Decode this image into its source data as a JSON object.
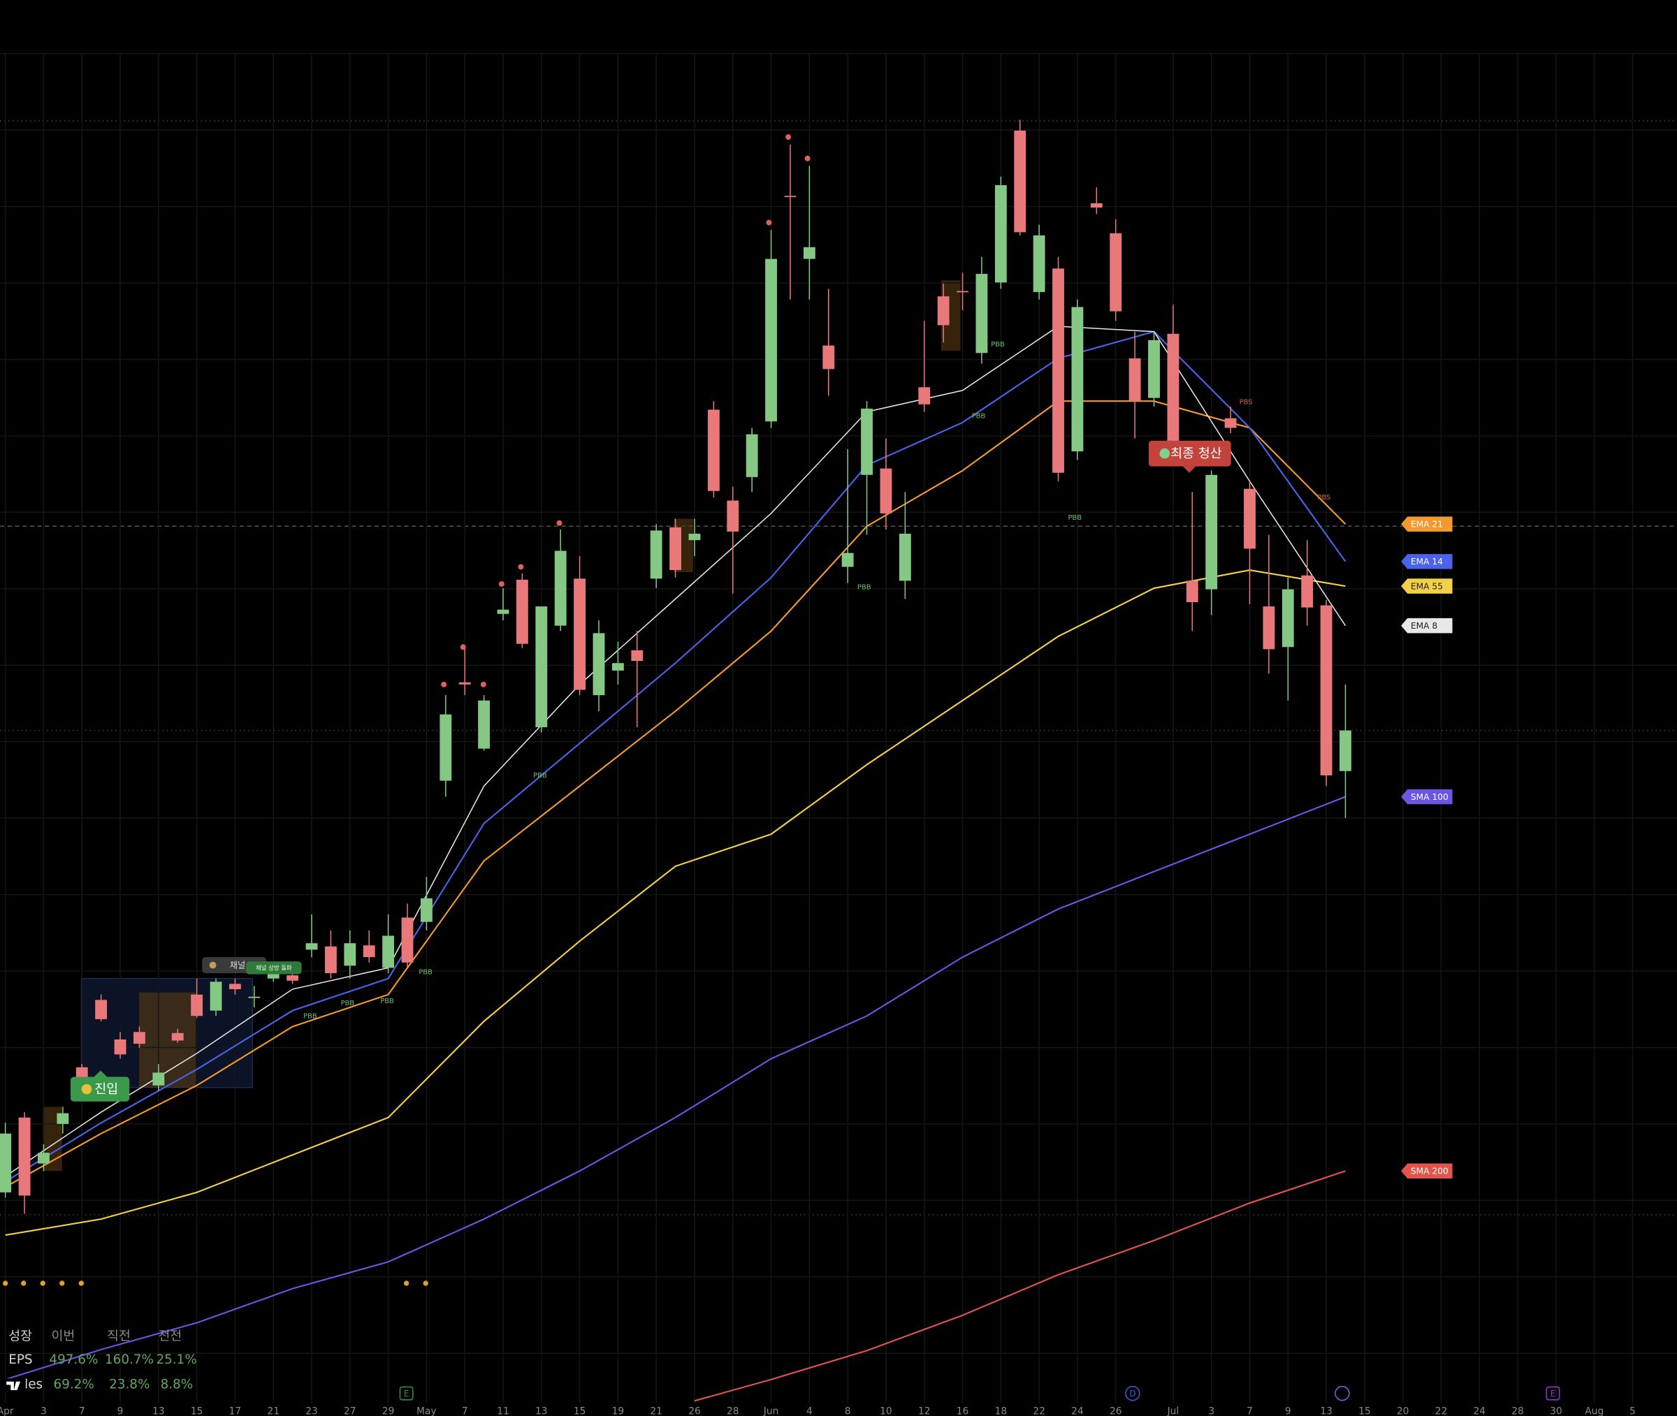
{
  "chart_data": {
    "type": "candlestick",
    "xlim": [
      -0.28,
      87.32
    ],
    "ylim": [
      0,
      132.4
    ],
    "up_color": "#84c883",
    "down_color": "#e8787a",
    "xticks": [
      {
        "value": 0,
        "label": "Apr"
      },
      {
        "value": 2,
        "label": "3"
      },
      {
        "value": 4,
        "label": "7"
      },
      {
        "value": 6,
        "label": "9"
      },
      {
        "value": 8,
        "label": "13"
      },
      {
        "value": 10,
        "label": "15"
      },
      {
        "value": 12,
        "label": "17"
      },
      {
        "value": 14,
        "label": "21"
      },
      {
        "value": 16,
        "label": "23"
      },
      {
        "value": 18,
        "label": "27"
      },
      {
        "value": 20,
        "label": "29"
      },
      {
        "value": 22,
        "label": "May"
      },
      {
        "value": 24,
        "label": "7"
      },
      {
        "value": 26,
        "label": "11"
      },
      {
        "value": 28,
        "label": "13"
      },
      {
        "value": 30,
        "label": "15"
      },
      {
        "value": 32,
        "label": "19"
      },
      {
        "value": 34,
        "label": "21"
      },
      {
        "value": 36,
        "label": "26"
      },
      {
        "value": 38,
        "label": "28"
      },
      {
        "value": 40,
        "label": "Jun"
      },
      {
        "value": 42,
        "label": "4"
      },
      {
        "value": 44,
        "label": "8"
      },
      {
        "value": 46,
        "label": "10"
      },
      {
        "value": 48,
        "label": "12"
      },
      {
        "value": 50,
        "label": "16"
      },
      {
        "value": 52,
        "label": "18"
      },
      {
        "value": 54,
        "label": "22"
      },
      {
        "value": 56,
        "label": "24"
      },
      {
        "value": 58,
        "label": "26"
      },
      {
        "value": 61,
        "label": "Jul"
      },
      {
        "value": 63,
        "label": "3"
      },
      {
        "value": 65,
        "label": "7"
      },
      {
        "value": 67,
        "label": "9"
      },
      {
        "value": 69,
        "label": "13"
      },
      {
        "value": 71,
        "label": "15"
      },
      {
        "value": 73,
        "label": "20"
      },
      {
        "value": 75,
        "label": "22"
      },
      {
        "value": 77,
        "label": "24"
      },
      {
        "value": 79,
        "label": "28"
      },
      {
        "value": 81,
        "label": "30"
      },
      {
        "value": 83,
        "label": "Aug"
      },
      {
        "value": 85,
        "label": "5"
      }
    ],
    "open": [
      20.9,
      27.9,
      23.6,
      27.3,
      32.6,
      38.9,
      35.2,
      35.9,
      30.9,
      35.8,
      39.4,
      37.9,
      40.4,
      39.2,
      40.9,
      41.2,
      43.6,
      43.9,
      42.1,
      44.0,
      41.9,
      46.6,
      46.2,
      59.4,
      68.6,
      62.4,
      75.0,
      78.2,
      64.4,
      73.9,
      78.3,
      67.4,
      69.7,
      71.6,
      78.3,
      83.1,
      81.9,
      94.1,
      85.6,
      87.8,
      93.0,
      114.1,
      108.2,
      100.1,
      79.4,
      88.0,
      88.6,
      78.1,
      96.2,
      104.7,
      105.2,
      99.4,
      106.0,
      120.2,
      105.1,
      107.3,
      90.2,
      113.4,
      110.6,
      98.9,
      95.2,
      101.2,
      78.1,
      77.3,
      93.3,
      86.7,
      75.7,
      71.9,
      78.6,
      75.8,
      60.3
    ],
    "high": [
      27.4,
      28.4,
      25.4,
      28.9,
      32.9,
      39.4,
      35.9,
      36.4,
      32.9,
      36.2,
      40.9,
      40.9,
      40.9,
      40.2,
      41.9,
      41.6,
      46.9,
      45.4,
      45.4,
      45.4,
      46.9,
      47.9,
      50.4,
      67.4,
      71.9,
      67.4,
      77.4,
      78.8,
      75.4,
      82.9,
      80.4,
      74.4,
      72.4,
      73.4,
      83.4,
      83.9,
      83.9,
      94.9,
      86.9,
      92.4,
      110.9,
      118.9,
      116.9,
      105.4,
      90.4,
      94.9,
      91.4,
      86.4,
      102.4,
      105.9,
      106.9,
      108.4,
      115.9,
      121.2,
      111.4,
      108.4,
      104.4,
      114.9,
      111.9,
      101.4,
      101.4,
      103.9,
      86.4,
      88.4,
      94.4,
      87.4,
      82.4,
      78.4,
      81.9,
      76.3,
      68.4
    ],
    "low": [
      20.4,
      18.9,
      22.9,
      26.4,
      31.4,
      36.9,
      33.4,
      34.4,
      30.4,
      34.9,
      37.2,
      37.4,
      39.4,
      38.2,
      40.6,
      40.4,
      42.9,
      40.9,
      40.9,
      42.4,
      41.4,
      41.9,
      45.4,
      57.9,
      67.4,
      62.2,
      74.4,
      71.8,
      63.9,
      73.4,
      67.4,
      65.9,
      68.4,
      64.4,
      77.4,
      78.4,
      80.4,
      85.9,
      76.9,
      86.4,
      92.4,
      104.4,
      104.4,
      95.4,
      77.9,
      82.4,
      82.9,
      76.4,
      93.9,
      100.4,
      103.4,
      98.4,
      105.4,
      110.4,
      104.4,
      87.4,
      89.4,
      112.4,
      102.4,
      91.4,
      94.4,
      90.4,
      73.4,
      74.9,
      91.9,
      75.9,
      69.4,
      66.9,
      73.9,
      58.9,
      55.9
    ],
    "close": [
      26.4,
      20.6,
      24.6,
      28.3,
      31.7,
      37.1,
      33.8,
      34.8,
      32.1,
      35.1,
      37.4,
      40.6,
      39.9,
      39.2,
      41.4,
      40.7,
      44.2,
      41.4,
      44.2,
      42.9,
      44.9,
      42.4,
      48.4,
      65.6,
      68.4,
      66.9,
      75.4,
      72.2,
      75.7,
      80.9,
      67.9,
      73.2,
      70.4,
      70.6,
      82.8,
      79.1,
      82.5,
      86.5,
      82.7,
      91.8,
      108.2,
      114.0,
      109.3,
      97.9,
      80.7,
      94.2,
      84.4,
      82.5,
      94.6,
      102.0,
      105.1,
      106.8,
      115.1,
      110.7,
      110.4,
      88.2,
      103.7,
      113.0,
      103.3,
      94.9,
      100.6,
      91.0,
      76.1,
      88.0,
      92.4,
      81.1,
      71.7,
      77.3,
      75.6,
      59.9,
      64.1
    ],
    "lines": [
      {
        "name": "EMA 21",
        "color": "#f29a2e",
        "x": [
          0,
          5,
          10,
          15,
          20,
          25,
          30,
          35,
          40,
          45,
          50,
          55,
          60,
          65,
          70
        ],
        "values": [
          21.4,
          26.4,
          30.9,
          36.4,
          39.4,
          51.9,
          58.9,
          65.9,
          73.4,
          83.2,
          88.4,
          94.9,
          94.9,
          92.4,
          83.4
        ]
      },
      {
        "name": "EMA 14",
        "color": "#4a63e8",
        "x": [
          0,
          5,
          10,
          15,
          20,
          25,
          30,
          35,
          40,
          45,
          50,
          55,
          60,
          65,
          70
        ],
        "values": [
          21.9,
          27.4,
          32.4,
          37.9,
          40.9,
          55.4,
          62.9,
          70.4,
          78.4,
          88.9,
          92.9,
          98.9,
          101.4,
          92.4,
          79.9
        ]
      },
      {
        "name": "EMA 55",
        "color": "#f2d04a",
        "x": [
          0,
          5,
          10,
          15,
          20,
          25,
          30,
          35,
          40,
          45,
          50,
          55,
          60,
          65,
          70
        ],
        "values": [
          16.9,
          18.4,
          20.9,
          24.4,
          27.9,
          36.9,
          44.4,
          51.4,
          54.4,
          60.9,
          66.9,
          72.9,
          77.4,
          79.1,
          77.6
        ]
      },
      {
        "name": "EMA 8",
        "color": "#e8e8e8",
        "x": [
          0,
          5,
          10,
          15,
          20,
          25,
          30,
          35,
          40,
          45,
          50,
          55,
          60,
          65,
          70
        ],
        "values": [
          22.4,
          28.4,
          33.9,
          39.9,
          41.9,
          58.9,
          68.4,
          76.4,
          84.4,
          93.9,
          95.9,
          101.9,
          101.4,
          87.4,
          73.9
        ]
      },
      {
        "name": "SMA 100",
        "color": "#6c55e0",
        "x": [
          0,
          5,
          10,
          15,
          20,
          25,
          30,
          35,
          40,
          45,
          50,
          55,
          60,
          65,
          70
        ],
        "values": [
          3.4,
          6.2,
          8.7,
          11.9,
          14.4,
          18.4,
          22.9,
          27.9,
          33.4,
          37.4,
          42.9,
          47.4,
          50.9,
          54.4,
          57.9
        ]
      },
      {
        "name": "SMA 200",
        "color": "#e0564c",
        "x": [
          36,
          40,
          45,
          50,
          55,
          60,
          65,
          70
        ],
        "values": [
          1.4,
          3.4,
          6.1,
          9.4,
          13.2,
          16.4,
          19.9,
          22.9
        ]
      }
    ],
    "annotations": [
      "진입",
      "최종 청산",
      "채널 (",
      "채널 상방 돌파",
      "PBB",
      "PBB",
      "PBB",
      "PBB",
      "PBB",
      "PBB",
      "PBB",
      "PBB",
      "PBB",
      "PBS",
      "PBS"
    ],
    "events": [
      "E",
      "D",
      "E"
    ]
  },
  "growth_table": {
    "header": [
      "성장",
      "이번",
      "직전",
      "전전"
    ],
    "rows": [
      [
        "EPS",
        "497.6%",
        "160.7%",
        "25.1%"
      ],
      [
        "Sales",
        "69.2%",
        "23.8%",
        "8.8%"
      ]
    ]
  }
}
